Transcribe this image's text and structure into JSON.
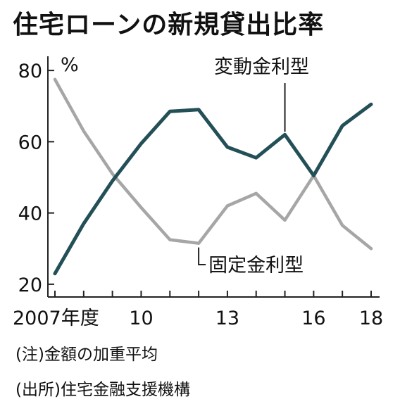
{
  "title": "住宅ローンの新規貸出比率",
  "notes": [
    "(注)金額の加重平均",
    "(出所)住宅金融支援機構"
  ],
  "chart_data": {
    "type": "line",
    "title": "住宅ローンの新規貸出比率",
    "unit": "%",
    "x": [
      2007,
      2008,
      2009,
      2010,
      2011,
      2012,
      2013,
      2014,
      2015,
      2016,
      2017,
      2018
    ],
    "x_tick_values": [
      2007,
      2010,
      2013,
      2016,
      2018
    ],
    "x_tick_labels": [
      "2007年度",
      "10",
      "13",
      "16",
      "18"
    ],
    "y_ticks": [
      20,
      40,
      60,
      80
    ],
    "ylim": [
      18,
      82
    ],
    "grid": false,
    "series": [
      {
        "name": "変動金利型",
        "color": "#234f57",
        "values": [
          23,
          37,
          49,
          59.5,
          68.5,
          69,
          58.5,
          55.5,
          62,
          50.5,
          64.5,
          70.5
        ]
      },
      {
        "name": "固定金利型",
        "color": "#a6a6a6",
        "values": [
          77.5,
          63,
          51,
          41.5,
          32.5,
          31.5,
          42,
          45.5,
          38,
          50.5,
          36.5,
          30
        ]
      }
    ]
  }
}
